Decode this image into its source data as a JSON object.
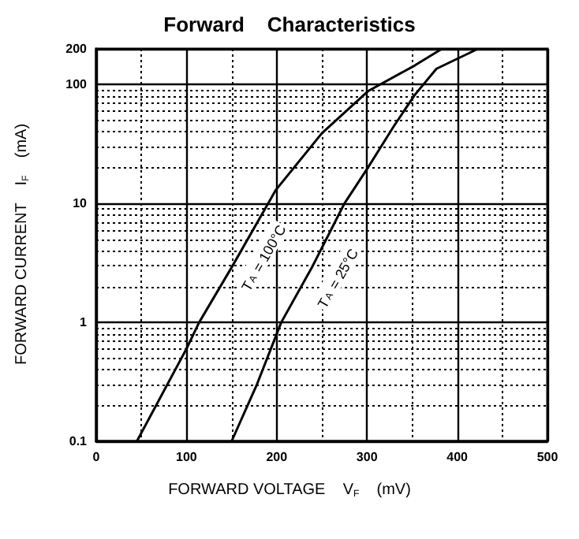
{
  "chart_data": {
    "type": "line",
    "title": "Forward    Characteristics",
    "xlabel": "FORWARD VOLTAGE    V$_{F}$    (mV)",
    "ylabel": "FORWARD CURRENT    I$_{F}$    (mA)",
    "series": [
      {
        "color": "#000000",
        "x": [
          45,
          100,
          114,
          150,
          199,
          250,
          301,
          353,
          383
        ],
        "values": [
          0.1,
          0.6,
          1,
          2.9,
          13,
          39,
          88,
          145,
          200
        ]
      },
      {
        "color": "#000000",
        "x": [
          150,
          178,
          205,
          240,
          275,
          301,
          330,
          353,
          377,
          423
        ],
        "values": [
          0.1,
          0.3,
          1,
          3,
          10,
          20,
          45,
          82,
          136,
          200
        ]
      }
    ],
    "annotations": [
      "T$_{A}$ = 100°C",
      "T$_{A}$ = 25°C"
    ],
    "xlim": [
      0,
      500
    ],
    "xticks": [
      0,
      100,
      200,
      300,
      400,
      500
    ],
    "ylim": [
      0.1,
      200
    ],
    "yticks": [
      0.1,
      1,
      10,
      100,
      200
    ],
    "log": "y",
    "grid": true,
    "marker": "none",
    "line_style": "solid"
  }
}
